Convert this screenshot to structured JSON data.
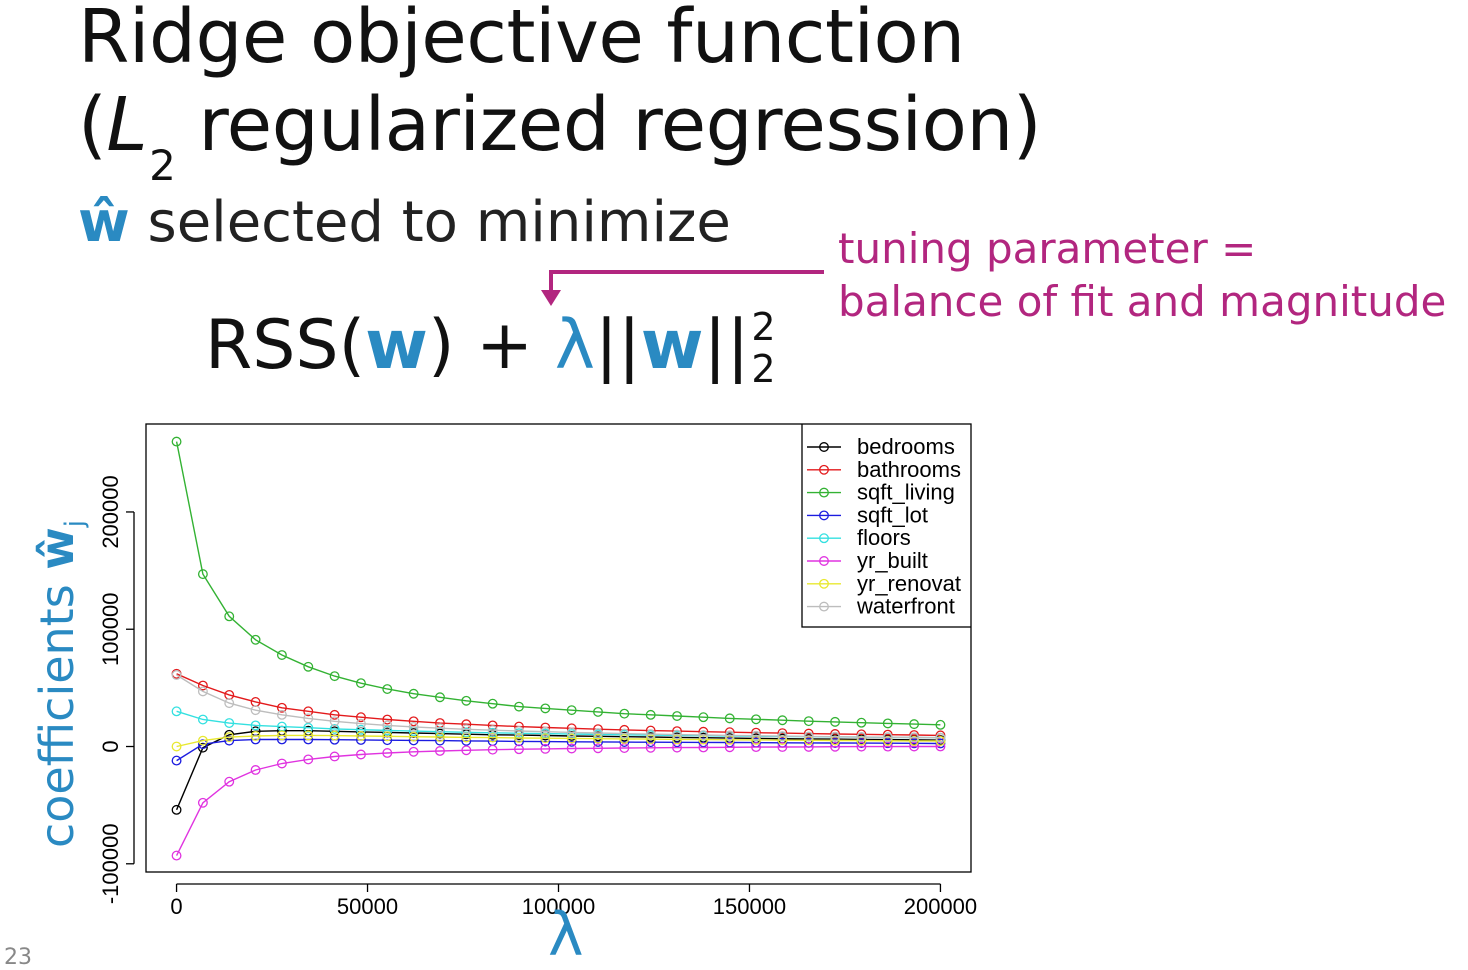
{
  "slide": {
    "title_line1": "Ridge objective function",
    "title_line2_open": "(",
    "title_line2_L": "L",
    "title_line2_sub": "2",
    "title_line2_rest": " regularized regression)",
    "subtitle_symbol": "ŵ",
    "subtitle_text": " selected to minimize",
    "formula_rss": "RSS(",
    "formula_w1": "w",
    "formula_mid": ") + ",
    "formula_lambda": "λ",
    "formula_bars1": "||",
    "formula_w2": "w",
    "formula_bars2": "||",
    "formula_sup": "2",
    "formula_sub": "2",
    "annotation_line1": "tuning parameter =",
    "annotation_line2": "balance of fit and magnitude",
    "y_axis_label": "coefficients ",
    "y_axis_symbol": "ŵ",
    "y_axis_sub": "j",
    "x_axis_symbol": "λ",
    "page_number": "23",
    "colors": {
      "accent_blue": "#2a8ac2",
      "annotation_magenta": "#b2267f"
    }
  },
  "chart_data": {
    "type": "line",
    "x": [
      0,
      6897,
      13793,
      20690,
      27586,
      34483,
      41379,
      48276,
      55172,
      62069,
      68966,
      75862,
      82759,
      89655,
      96552,
      103448,
      110345,
      117241,
      124138,
      131034,
      137931,
      144828,
      151724,
      158621,
      165517,
      172414,
      179310,
      186207,
      193103,
      200000
    ],
    "x_ticks": [
      "0",
      "50000",
      "100000",
      "150000",
      "200000"
    ],
    "y_ticks": [
      "-100000",
      "0",
      "100000",
      "200000"
    ],
    "xlim": [
      -8000,
      208000
    ],
    "ylim": [
      -107000,
      275000
    ],
    "grid": false,
    "legend_position": "top-right",
    "series": [
      {
        "name": "bedrooms",
        "color": "#000000",
        "values": [
          -54000,
          -1000,
          10000,
          13000,
          13500,
          13500,
          13000,
          12500,
          12000,
          11500,
          11000,
          10500,
          10000,
          9700,
          9400,
          9000,
          8700,
          8400,
          8100,
          7800,
          7500,
          7200,
          6900,
          6700,
          6500,
          6300,
          6100,
          5900,
          5700,
          5500
        ]
      },
      {
        "name": "bathrooms",
        "color": "#e31a1c",
        "values": [
          62000,
          52000,
          44000,
          38000,
          33000,
          30000,
          27000,
          25000,
          23000,
          21500,
          20000,
          19000,
          18000,
          17000,
          16200,
          15500,
          14800,
          14200,
          13600,
          13100,
          12600,
          12200,
          11800,
          11400,
          11000,
          10700,
          10400,
          10100,
          9800,
          9500
        ]
      },
      {
        "name": "sqft_living",
        "color": "#33b233",
        "values": [
          260000,
          147000,
          111000,
          91000,
          78000,
          68000,
          60000,
          54000,
          49000,
          45000,
          42000,
          39000,
          36500,
          34000,
          32500,
          31000,
          29500,
          28000,
          27000,
          26000,
          25000,
          24000,
          23200,
          22400,
          21600,
          21000,
          20300,
          19700,
          19100,
          18500
        ]
      },
      {
        "name": "sqft_lot",
        "color": "#1c1ce0",
        "values": [
          -12000,
          2000,
          5000,
          6000,
          6000,
          6000,
          5800,
          5600,
          5400,
          5200,
          5000,
          4800,
          4600,
          4400,
          4200,
          4000,
          3900,
          3800,
          3700,
          3600,
          3500,
          3400,
          3300,
          3200,
          3100,
          3000,
          2900,
          2800,
          2700,
          2600
        ]
      },
      {
        "name": "floors",
        "color": "#33e0e0",
        "values": [
          30000,
          23000,
          20000,
          18000,
          17000,
          16000,
          15000,
          14300,
          13700,
          13100,
          12600,
          12100,
          11700,
          11300,
          11000,
          10600,
          10300,
          10000,
          9700,
          9500,
          9200,
          9000,
          8800,
          8600,
          8400,
          8200,
          8000,
          7800,
          7700,
          7500
        ]
      },
      {
        "name": "yr_built",
        "color": "#e033e0",
        "values": [
          -93000,
          -48000,
          -30000,
          -20000,
          -14500,
          -11000,
          -8500,
          -6800,
          -5500,
          -4500,
          -3800,
          -3200,
          -2700,
          -2300,
          -2000,
          -1700,
          -1500,
          -1300,
          -1100,
          -950,
          -800,
          -650,
          -500,
          -400,
          -300,
          -200,
          -100,
          -50,
          0,
          50
        ]
      },
      {
        "name": "yr_renovated",
        "color": "#e8e830",
        "values": [
          0,
          5000,
          8000,
          9000,
          9500,
          9500,
          9300,
          9000,
          8700,
          8400,
          8100,
          7800,
          7600,
          7300,
          7100,
          6900,
          6700,
          6500,
          6300,
          6100,
          5900,
          5700,
          5600,
          5400,
          5300,
          5100,
          5000,
          4900,
          4800,
          4700
        ]
      },
      {
        "name": "waterfront",
        "color": "#bdbdbd",
        "values": [
          61000,
          47000,
          37000,
          31000,
          27000,
          24000,
          21500,
          19500,
          18000,
          16700,
          15600,
          14700,
          13900,
          13200,
          12600,
          12000,
          11500,
          11000,
          10600,
          10200,
          9800,
          9500,
          9200,
          8900,
          8600,
          8400,
          8100,
          7900,
          7700,
          7500
        ]
      }
    ],
    "legend_labels": [
      "bedrooms",
      "bathrooms",
      "sqft_living",
      "sqft_lot",
      "floors",
      "yr_built",
      "yr_renovat",
      "waterfront"
    ]
  }
}
